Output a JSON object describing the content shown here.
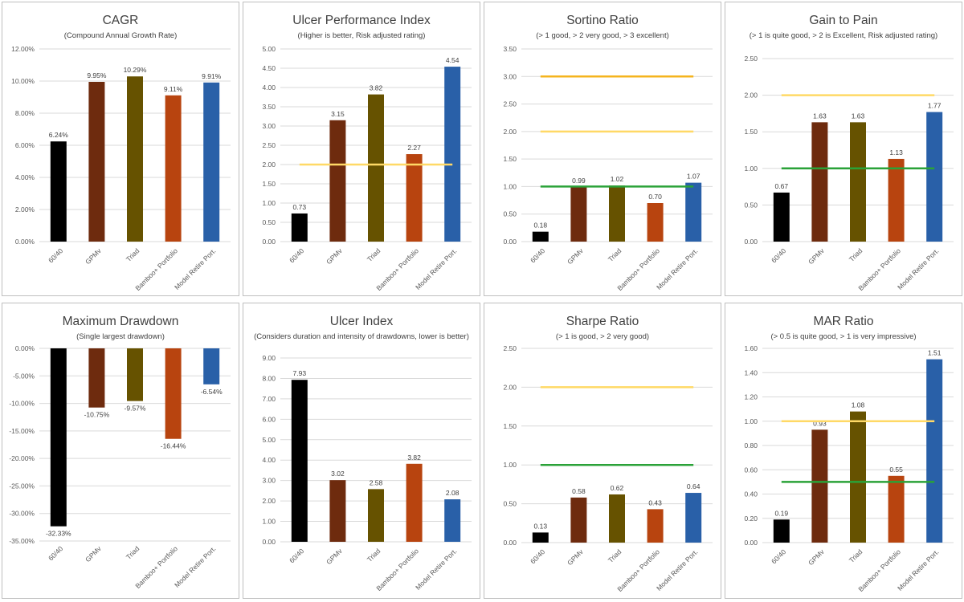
{
  "colors": {
    "series": [
      "#000000",
      "#6e2b0e",
      "#665200",
      "#b8440f",
      "#2960a8"
    ],
    "gridline": "#d9d9d9",
    "axis_text": "#595959",
    "ref_yellow": "#ffd966",
    "ref_gold": "#f5b41e",
    "ref_green": "#2aa238"
  },
  "chart_data": [
    {
      "id": "cagr",
      "type": "bar",
      "title": "CAGR",
      "subtitle": "(Compound Annual Growth Rate)",
      "categories": [
        "60/40",
        "GPMv",
        "Triad",
        "Bamboo+ Portfolio",
        "Model Retire Port."
      ],
      "values": [
        6.24,
        9.95,
        10.29,
        9.11,
        9.91
      ],
      "value_labels": [
        "6.24%",
        "9.95%",
        "10.29%",
        "9.11%",
        "9.91%"
      ],
      "ylim": [
        0,
        12
      ],
      "yticks": [
        "0.00%",
        "2.00%",
        "4.00%",
        "6.00%",
        "8.00%",
        "10.00%",
        "12.00%"
      ],
      "reference_lines": []
    },
    {
      "id": "upi",
      "type": "bar",
      "title": "Ulcer Performance Index",
      "subtitle": "(Higher is better, Risk adjusted rating)",
      "categories": [
        "60/40",
        "GPMv",
        "Triad",
        "Bamboo+ Portfolio",
        "Model Retire Port."
      ],
      "values": [
        0.73,
        3.15,
        3.82,
        2.27,
        4.54
      ],
      "value_labels": [
        "0.73",
        "3.15",
        "3.82",
        "2.27",
        "4.54"
      ],
      "ylim": [
        0,
        5
      ],
      "yticks": [
        "0.00",
        "0.50",
        "1.00",
        "1.50",
        "2.00",
        "2.50",
        "3.00",
        "3.50",
        "4.00",
        "4.50",
        "5.00"
      ],
      "reference_lines": [
        {
          "value": 2,
          "color": "#ffd966"
        }
      ]
    },
    {
      "id": "sortino",
      "type": "bar",
      "title": "Sortino Ratio",
      "subtitle": "(> 1 good, > 2 very good, > 3 excellent)",
      "categories": [
        "60/40",
        "GPMv",
        "Triad",
        "Bamboo+ Portfolio",
        "Model Retire Port."
      ],
      "values": [
        0.18,
        0.99,
        1.02,
        0.7,
        1.07
      ],
      "value_labels": [
        "0.18",
        "0.99",
        "1.02",
        "0.70",
        "1.07"
      ],
      "ylim": [
        0,
        3.5
      ],
      "yticks": [
        "0.00",
        "0.50",
        "1.00",
        "1.50",
        "2.00",
        "2.50",
        "3.00",
        "3.50"
      ],
      "reference_lines": [
        {
          "value": 3,
          "color": "#f5b41e"
        },
        {
          "value": 2,
          "color": "#ffd966"
        },
        {
          "value": 1,
          "color": "#2aa238"
        }
      ]
    },
    {
      "id": "gain2pain",
      "type": "bar",
      "title": "Gain to Pain",
      "subtitle": "(> 1 is quite good, > 2 is Excellent, Risk adjusted rating)",
      "categories": [
        "60/40",
        "GPMv",
        "Triad",
        "Bamboo+ Portfolio",
        "Model Retire Port."
      ],
      "values": [
        0.67,
        1.63,
        1.63,
        1.13,
        1.77
      ],
      "value_labels": [
        "0.67",
        "1.63",
        "1.63",
        "1.13",
        "1.77"
      ],
      "ylim": [
        0,
        2.5
      ],
      "yticks": [
        "0.00",
        "0.50",
        "1.00",
        "1.50",
        "2.00",
        "2.50"
      ],
      "reference_lines": [
        {
          "value": 2,
          "color": "#ffd966"
        },
        {
          "value": 1,
          "color": "#2aa238"
        }
      ]
    },
    {
      "id": "maxdd",
      "type": "bar",
      "title": "Maximum Drawdown",
      "subtitle": "(Single largest drawdown)",
      "categories": [
        "60/40",
        "GPMv",
        "Triad",
        "Bamboo+ Portfolio",
        "Model Retire Port."
      ],
      "values": [
        -32.33,
        -10.75,
        -9.57,
        -16.44,
        -6.54
      ],
      "value_labels": [
        "-32.33%",
        "-10.75%",
        "-9.57%",
        "-16.44%",
        "-6.54%"
      ],
      "ylim": [
        -35,
        0
      ],
      "yticks": [
        "-35.00%",
        "-30.00%",
        "-25.00%",
        "-20.00%",
        "-15.00%",
        "-10.00%",
        "-5.00%",
        "0.00%"
      ],
      "reference_lines": []
    },
    {
      "id": "ulcer",
      "type": "bar",
      "title": "Ulcer Index",
      "subtitle": "(Considers duration and intensity of drawdowns, lower is better)",
      "categories": [
        "60/40",
        "GPMv",
        "Triad",
        "Bamboo+ Portfolio",
        "Model Retire Port."
      ],
      "values": [
        7.93,
        3.02,
        2.58,
        3.82,
        2.08
      ],
      "value_labels": [
        "7.93",
        "3.02",
        "2.58",
        "3.82",
        "2.08"
      ],
      "ylim": [
        0,
        9
      ],
      "yticks": [
        "0.00",
        "1.00",
        "2.00",
        "3.00",
        "4.00",
        "5.00",
        "6.00",
        "7.00",
        "8.00",
        "9.00"
      ],
      "reference_lines": []
    },
    {
      "id": "sharpe",
      "type": "bar",
      "title": "Sharpe Ratio",
      "subtitle": "(> 1 is good, > 2 very good)",
      "categories": [
        "60/40",
        "GPMv",
        "Triad",
        "Bamboo+ Portfolio",
        "Model Retire Port."
      ],
      "values": [
        0.13,
        0.58,
        0.62,
        0.43,
        0.64
      ],
      "value_labels": [
        "0.13",
        "0.58",
        "0.62",
        "0.43",
        "0.64"
      ],
      "ylim": [
        0,
        2.5
      ],
      "yticks": [
        "0.00",
        "0.50",
        "1.00",
        "1.50",
        "2.00",
        "2.50"
      ],
      "reference_lines": [
        {
          "value": 2,
          "color": "#ffd966"
        },
        {
          "value": 1,
          "color": "#2aa238"
        }
      ]
    },
    {
      "id": "mar",
      "type": "bar",
      "title": "MAR Ratio",
      "subtitle": "(> 0.5 is quite good, > 1 is very impressive)",
      "categories": [
        "60/40",
        "GPMv",
        "Triad",
        "Bamboo+ Portfolio",
        "Model Retire Port."
      ],
      "values": [
        0.19,
        0.93,
        1.08,
        0.55,
        1.51
      ],
      "value_labels": [
        "0.19",
        "0.93",
        "1.08",
        "0.55",
        "1.51"
      ],
      "ylim": [
        0,
        1.6
      ],
      "yticks": [
        "0.00",
        "0.20",
        "0.40",
        "0.60",
        "0.80",
        "1.00",
        "1.20",
        "1.40",
        "1.60"
      ],
      "reference_lines": [
        {
          "value": 1,
          "color": "#ffd966"
        },
        {
          "value": 0.5,
          "color": "#2aa238"
        }
      ]
    }
  ]
}
